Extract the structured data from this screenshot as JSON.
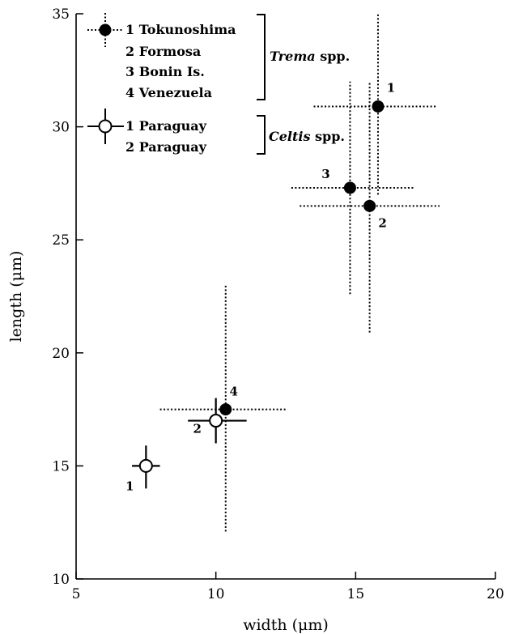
{
  "chart_data": {
    "type": "scatter",
    "xlabel": "width (μm)",
    "ylabel": "length (μm)",
    "xlim": [
      5,
      20
    ],
    "ylim": [
      10,
      35
    ],
    "xticks": [
      5,
      10,
      15,
      20
    ],
    "yticks": [
      10,
      15,
      20,
      25,
      30,
      35
    ],
    "legend_position": "top-left",
    "legend": {
      "groups": [
        {
          "genus": "Trema",
          "suffix": " spp.",
          "marker": "filled",
          "items": [
            "1 Tokunoshima",
            "2 Formosa",
            "3 Bonin Is.",
            "4 Venezuela"
          ]
        },
        {
          "genus": "Celtis",
          "suffix": " spp.",
          "marker": "open",
          "items": [
            "1 Paraguay",
            "2 Paraguay"
          ]
        }
      ]
    },
    "series": [
      {
        "group": "Trema",
        "marker": "filled",
        "errorbar_style": "dotted",
        "points": [
          {
            "label": "1",
            "x": 15.8,
            "y": 30.9,
            "xerr": [
              13.5,
              17.9
            ],
            "yerr": [
              27.0,
              35.0
            ]
          },
          {
            "label": "2",
            "x": 15.5,
            "y": 26.5,
            "xerr": [
              13.0,
              18.0
            ],
            "yerr": [
              20.9,
              32.0
            ]
          },
          {
            "label": "3",
            "x": 14.8,
            "y": 27.3,
            "xerr": [
              12.7,
              17.1
            ],
            "yerr": [
              22.6,
              32.0
            ]
          },
          {
            "label": "4",
            "x": 10.35,
            "y": 17.5,
            "xerr": [
              8.0,
              12.5
            ],
            "yerr": [
              12.1,
              23.0
            ]
          }
        ]
      },
      {
        "group": "Celtis",
        "marker": "open",
        "errorbar_style": "solid",
        "points": [
          {
            "label": "1",
            "x": 7.5,
            "y": 15.0,
            "xerr": [
              7.0,
              8.0
            ],
            "yerr": [
              14.0,
              15.9
            ]
          },
          {
            "label": "2",
            "x": 10.0,
            "y": 17.0,
            "xerr": [
              9.0,
              11.1
            ],
            "yerr": [
              16.0,
              18.0
            ]
          }
        ]
      }
    ]
  }
}
